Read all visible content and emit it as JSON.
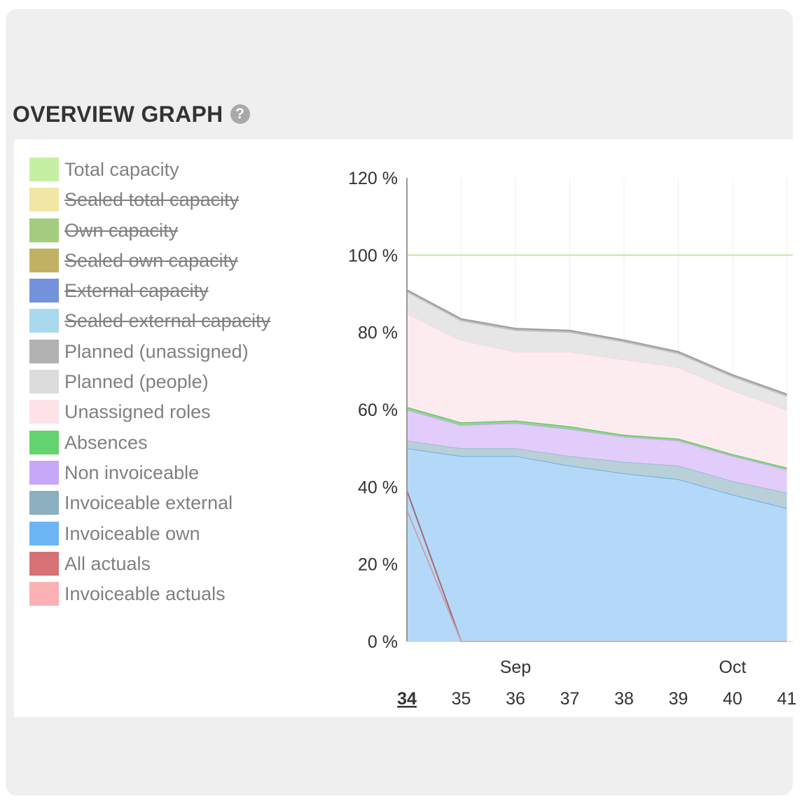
{
  "header": {
    "title": "OVERVIEW GRAPH",
    "help_glyph": "?"
  },
  "legend": [
    {
      "label": "Total capacity",
      "color": "#c5f0a4",
      "enabled": true
    },
    {
      "label": "Sealed total capacity",
      "color": "#efe7a3",
      "enabled": false
    },
    {
      "label": "Own capacity",
      "color": "#a4cc7e",
      "enabled": false
    },
    {
      "label": "Sealed own capacity",
      "color": "#c0b262",
      "enabled": false
    },
    {
      "label": "External capacity",
      "color": "#7392dc",
      "enabled": false
    },
    {
      "label": "Sealed external capacity",
      "color": "#aad9ee",
      "enabled": false
    },
    {
      "label": "Planned (unassigned)",
      "color": "#b2b2b2",
      "enabled": true
    },
    {
      "label": "Planned (people)",
      "color": "#dcdcdc",
      "enabled": true
    },
    {
      "label": "Unassigned roles",
      "color": "#fde2e8",
      "enabled": true
    },
    {
      "label": "Absences",
      "color": "#63d36e",
      "enabled": true
    },
    {
      "label": "Non invoiceable",
      "color": "#c7a8f8",
      "enabled": true
    },
    {
      "label": "Invoiceable external",
      "color": "#8aafbf",
      "enabled": true
    },
    {
      "label": "Invoiceable own",
      "color": "#6bb5f5",
      "enabled": true
    },
    {
      "label": "All actuals",
      "color": "#d67176",
      "enabled": true
    },
    {
      "label": "Invoiceable actuals",
      "color": "#fbb1b4",
      "enabled": true
    }
  ],
  "chart_data": {
    "type": "area",
    "stacked": true,
    "x": [
      "34",
      "35",
      "36",
      "37",
      "38",
      "39",
      "40",
      "41"
    ],
    "current_week": "34",
    "month_labels": [
      {
        "label": "Sep",
        "at": "36"
      },
      {
        "label": "Oct",
        "at": "40"
      }
    ],
    "ylim": [
      0,
      120
    ],
    "yticks": [
      0,
      20,
      40,
      60,
      80,
      100,
      120
    ],
    "y_tick_suffix": " %",
    "grid": "vertical",
    "series": [
      {
        "name": "Invoiceable own",
        "values": [
          50,
          48,
          48,
          45.5,
          43.5,
          42,
          38,
          34.5
        ],
        "fill": "#b4d9f8",
        "stroke": "#6aaee8"
      },
      {
        "name": "Invoiceable external",
        "values": [
          2,
          2,
          2,
          2.5,
          3,
          3.5,
          3.5,
          4
        ],
        "fill": "#b9d0d9",
        "stroke": "#9bbccb"
      },
      {
        "name": "Non invoiceable",
        "values": [
          8,
          6,
          6.5,
          7,
          6.5,
          6.5,
          6.5,
          6
        ],
        "fill": "#e1ccfa",
        "stroke": "#c6a8f2"
      },
      {
        "name": "Absences",
        "values": [
          0.7,
          0.7,
          0.7,
          0.7,
          0.5,
          0.5,
          0.5,
          0.5
        ],
        "fill": "#8fd68e",
        "stroke": "#5cc05c"
      },
      {
        "name": "Unassigned roles",
        "values": [
          24.3,
          21.3,
          17.8,
          19.3,
          19.5,
          18.5,
          16.5,
          15
        ],
        "fill": "#fdecef",
        "stroke": "#f7d6dc"
      },
      {
        "name": "Planned (people)",
        "values": [
          5.5,
          5,
          5.5,
          5,
          4.5,
          3.5,
          3.5,
          3.5
        ],
        "fill": "#e6e6e6",
        "stroke": "#cfcfcf"
      },
      {
        "name": "Planned (unassigned)",
        "values": [
          0.5,
          0.5,
          0.5,
          0.5,
          0.5,
          0.5,
          0.5,
          0.5
        ],
        "fill": "#bdbdbd",
        "stroke": "#9e9e9e"
      }
    ],
    "lines": [
      {
        "name": "Total capacity",
        "values": [
          100,
          100,
          100,
          100,
          100,
          100,
          100,
          100
        ],
        "color": "#bfe8a0"
      },
      {
        "name": "All actuals",
        "values": [
          39,
          0,
          0,
          0,
          0,
          0,
          0,
          0
        ],
        "color": "#a26a72"
      },
      {
        "name": "Invoiceable actuals",
        "values": [
          34,
          0,
          0,
          0,
          0,
          0,
          0,
          0
        ],
        "color": "#c9a2ad"
      }
    ]
  }
}
